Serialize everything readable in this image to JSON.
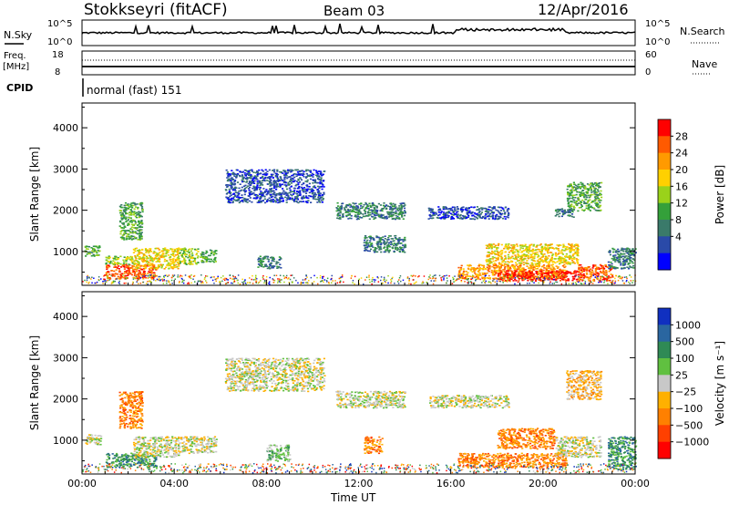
{
  "header": {
    "station": "Stokkseyri (fitACF)",
    "beam": "Beam 03",
    "date": "12/Apr/2016"
  },
  "sky_panel": {
    "left_label": "N.Sky",
    "right_label": "N.Search",
    "left_ticks": [
      "10^5",
      "10^0"
    ],
    "right_ticks": [
      "10^5",
      "10^0"
    ]
  },
  "freq_panel": {
    "left_label_1": "Freq.",
    "left_label_2": "[MHz]",
    "right_label": "Nave",
    "left_ticks": [
      "18",
      "8"
    ],
    "right_ticks": [
      "60",
      "0"
    ]
  },
  "cpid": {
    "label": "CPID",
    "mode": "normal (fast) 151"
  },
  "chart_data": [
    {
      "type": "heatmap",
      "name": "power",
      "ylabel": "Slant Range [km]",
      "xlabel": "",
      "x_ticks": [
        "00:00",
        "04:00",
        "08:00",
        "12:00",
        "16:00",
        "20:00",
        "00:00"
      ],
      "x_tick_hours": [
        0,
        4,
        8,
        12,
        16,
        20,
        24
      ],
      "y_ticks": [
        1000,
        2000,
        3000,
        4000
      ],
      "ylim": [
        180,
        4600
      ],
      "xlim_hours": [
        0,
        24
      ],
      "colorbar": {
        "label": "Power [dB]",
        "ticks": [
          "28",
          "24",
          "20",
          "16",
          "12",
          "8",
          "4"
        ],
        "colors": [
          "#ff0000",
          "#ff5a00",
          "#ff9a00",
          "#ffd000",
          "#9ad21a",
          "#34a03a",
          "#3a7a6a",
          "#2a4aa8",
          "#0000ff"
        ]
      },
      "regions": [
        {
          "t0": 0.1,
          "t1": 0.8,
          "r0": 900,
          "r1": 1150,
          "level": 5
        },
        {
          "t0": 1.0,
          "t1": 3.2,
          "r0": 350,
          "r1": 700,
          "level": 1
        },
        {
          "t0": 1.0,
          "t1": 2.2,
          "r0": 700,
          "r1": 900,
          "level": 4
        },
        {
          "t0": 2.2,
          "t1": 4.2,
          "r0": 600,
          "r1": 1100,
          "level": 3
        },
        {
          "t0": 1.6,
          "t1": 2.6,
          "r0": 1300,
          "r1": 2200,
          "level": 5
        },
        {
          "t0": 4.2,
          "t1": 5.0,
          "r0": 700,
          "r1": 1100,
          "level": 4
        },
        {
          "t0": 5.1,
          "t1": 5.8,
          "r0": 750,
          "r1": 1050,
          "level": 5
        },
        {
          "t0": 7.6,
          "t1": 8.6,
          "r0": 600,
          "r1": 900,
          "level": 6
        },
        {
          "t0": 6.2,
          "t1": 10.5,
          "r0": 2200,
          "r1": 3000,
          "level": 7
        },
        {
          "t0": 11.0,
          "t1": 14.0,
          "r0": 1800,
          "r1": 2200,
          "level": 6
        },
        {
          "t0": 12.2,
          "t1": 14.0,
          "r0": 1000,
          "r1": 1400,
          "level": 6
        },
        {
          "t0": 15.0,
          "t1": 18.5,
          "r0": 1800,
          "r1": 2100,
          "level": 7
        },
        {
          "t0": 16.3,
          "t1": 21.0,
          "r0": 350,
          "r1": 700,
          "level": 2
        },
        {
          "t0": 18.0,
          "t1": 21.5,
          "r0": 300,
          "r1": 550,
          "level": 0
        },
        {
          "t0": 17.5,
          "t1": 21.5,
          "r0": 700,
          "r1": 1200,
          "level": 3
        },
        {
          "t0": 21.5,
          "t1": 23.0,
          "r0": 300,
          "r1": 700,
          "level": 1
        },
        {
          "t0": 21.0,
          "t1": 22.5,
          "r0": 2000,
          "r1": 2700,
          "level": 5
        },
        {
          "t0": 22.8,
          "t1": 24.0,
          "r0": 600,
          "r1": 1100,
          "level": 6
        },
        {
          "t0": 20.5,
          "t1": 21.3,
          "r0": 1850,
          "r1": 2050,
          "level": 6
        }
      ]
    },
    {
      "type": "heatmap",
      "name": "velocity",
      "ylabel": "Slant Range [km]",
      "xlabel": "Time UT",
      "x_ticks": [
        "00:00",
        "04:00",
        "08:00",
        "12:00",
        "16:00",
        "20:00",
        "00:00"
      ],
      "x_tick_hours": [
        0,
        4,
        8,
        12,
        16,
        20,
        24
      ],
      "y_ticks": [
        1000,
        2000,
        3000,
        4000
      ],
      "ylim": [
        180,
        4600
      ],
      "xlim_hours": [
        0,
        24
      ],
      "colorbar": {
        "label": "Velocity [m s⁻¹]",
        "ticks": [
          "1000",
          "500",
          "100",
          "25",
          "−25",
          "−100",
          "−500",
          "−1000"
        ],
        "colors": [
          "#1030c0",
          "#2a66a0",
          "#2f8a55",
          "#60c040",
          "#c8c8c8",
          "#ffb000",
          "#ff8000",
          "#ff4000",
          "#ff0000"
        ]
      },
      "regions": [
        {
          "t0": 0.1,
          "t1": 0.8,
          "r0": 900,
          "r1": 1150,
          "level": 4
        },
        {
          "t0": 1.0,
          "t1": 3.2,
          "r0": 350,
          "r1": 700,
          "level": 2
        },
        {
          "t0": 2.2,
          "t1": 4.2,
          "r0": 600,
          "r1": 1100,
          "level": 4
        },
        {
          "t0": 1.6,
          "t1": 2.6,
          "r0": 1300,
          "r1": 2200,
          "level": 6
        },
        {
          "t0": 4.2,
          "t1": 5.8,
          "r0": 700,
          "r1": 1100,
          "level": 4
        },
        {
          "t0": 6.2,
          "t1": 10.5,
          "r0": 2200,
          "r1": 3000,
          "level": 4
        },
        {
          "t0": 11.0,
          "t1": 14.0,
          "r0": 1800,
          "r1": 2200,
          "level": 4
        },
        {
          "t0": 12.2,
          "t1": 13.0,
          "r0": 700,
          "r1": 1100,
          "level": 6
        },
        {
          "t0": 15.0,
          "t1": 18.5,
          "r0": 1800,
          "r1": 2100,
          "level": 4
        },
        {
          "t0": 16.3,
          "t1": 21.0,
          "r0": 350,
          "r1": 700,
          "level": 6
        },
        {
          "t0": 18.0,
          "t1": 20.5,
          "r0": 800,
          "r1": 1300,
          "level": 6
        },
        {
          "t0": 20.5,
          "t1": 22.5,
          "r0": 600,
          "r1": 1100,
          "level": 4
        },
        {
          "t0": 21.0,
          "t1": 22.5,
          "r0": 2000,
          "r1": 2700,
          "level": 5
        },
        {
          "t0": 22.8,
          "t1": 24.0,
          "r0": 300,
          "r1": 1100,
          "level": 2
        },
        {
          "t0": 8.0,
          "t1": 9.0,
          "r0": 500,
          "r1": 900,
          "level": 3
        }
      ]
    }
  ]
}
